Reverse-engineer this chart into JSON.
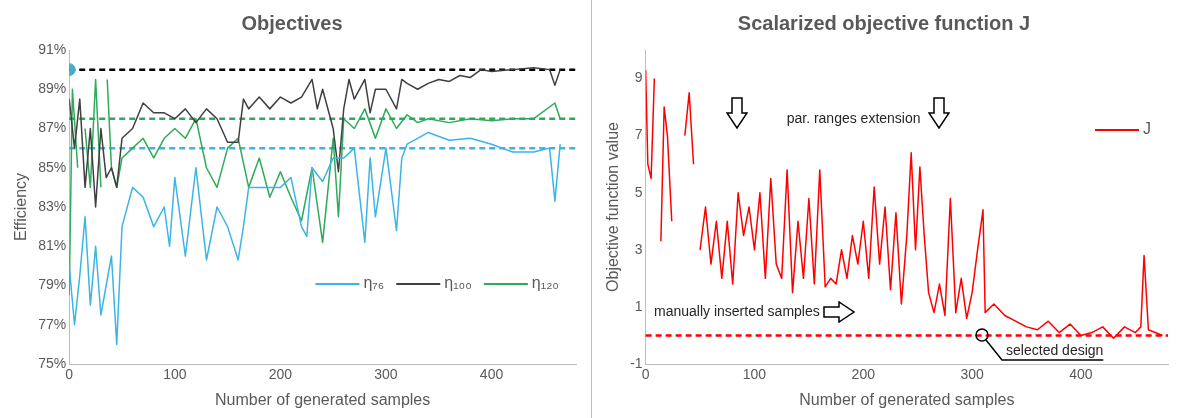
{
  "chart_data": [
    {
      "type": "line",
      "title": "Objectives",
      "xlabel": "Number of generated samples",
      "ylabel": "Efficiency",
      "xlim": [
        0,
        480
      ],
      "xticks": [
        0,
        100,
        200,
        300,
        400
      ],
      "ylim": [
        75,
        91
      ],
      "yticks": [
        {
          "value": 75,
          "label": "75%"
        },
        {
          "value": 77,
          "label": "77%"
        },
        {
          "value": 79,
          "label": "79%"
        },
        {
          "value": 81,
          "label": "81%"
        },
        {
          "value": 83,
          "label": "83%"
        },
        {
          "value": 85,
          "label": "85%"
        },
        {
          "value": 87,
          "label": "87%"
        },
        {
          "value": 89,
          "label": "89%"
        },
        {
          "value": 91,
          "label": "91%"
        }
      ],
      "grid": false,
      "legend": "bottom right",
      "marker": "none",
      "line_style": "solid",
      "series": [
        {
          "name": "η₇₆",
          "color": "#3cb4e5",
          "x": [
            0,
            5,
            10,
            15,
            20,
            25,
            30,
            35,
            40,
            45,
            50,
            60,
            70,
            80,
            90,
            95,
            100,
            110,
            120,
            130,
            140,
            150,
            160,
            165,
            170,
            180,
            190,
            200,
            210,
            220,
            225,
            230,
            240,
            250,
            260,
            270,
            280,
            285,
            290,
            300,
            310,
            315,
            320,
            330,
            340,
            360,
            380,
            400,
            420,
            440,
            455,
            460,
            465
          ],
          "values": [
            80,
            77,
            79.5,
            82.5,
            78,
            81,
            77.5,
            79,
            80.5,
            76,
            82,
            84,
            83.5,
            82,
            83,
            81,
            84.5,
            80.5,
            85,
            80.3,
            83,
            82,
            80.3,
            82,
            84,
            84,
            84,
            84,
            84.5,
            82,
            81.5,
            85,
            84.3,
            85.5,
            85.5,
            86,
            81.2,
            85.5,
            82.5,
            86,
            81.8,
            85.5,
            86.2,
            86.5,
            86.8,
            86.4,
            86.5,
            86.2,
            85.8,
            85.8,
            86,
            83.3,
            86.2
          ]
        },
        {
          "name": "η₁₀₀",
          "color": "#404040",
          "x": [
            0,
            5,
            10,
            15,
            20,
            25,
            30,
            35,
            40,
            45,
            50,
            60,
            70,
            80,
            90,
            100,
            110,
            120,
            130,
            140,
            150,
            160,
            165,
            170,
            180,
            190,
            200,
            210,
            220,
            230,
            235,
            240,
            250,
            255,
            260,
            265,
            270,
            280,
            285,
            290,
            300,
            310,
            315,
            320,
            330,
            340,
            350,
            360,
            370,
            380,
            390,
            400,
            420,
            440,
            455,
            460,
            465
          ],
          "values": [
            88.5,
            86,
            88.5,
            84,
            87,
            83,
            87,
            84.5,
            85,
            84,
            86.5,
            87,
            88.3,
            87.8,
            87.8,
            87.5,
            88,
            87.3,
            88,
            87.5,
            86.3,
            86.3,
            88.5,
            88,
            88.6,
            88,
            88.6,
            88.3,
            88.6,
            89.5,
            88,
            89,
            87,
            84.8,
            88,
            89.5,
            88.5,
            89.5,
            87.8,
            89,
            89,
            88,
            89.5,
            89.3,
            89,
            89.3,
            89.5,
            89.4,
            89.7,
            89.6,
            90,
            89.9,
            90,
            90.1,
            90,
            89.2,
            90
          ]
        },
        {
          "name": "η₁₂₀",
          "color": "#2daa5a",
          "x": [
            0,
            3,
            8,
            10,
            15,
            20,
            25,
            30,
            33,
            36,
            40,
            45,
            50,
            60,
            70,
            80,
            90,
            100,
            110,
            120,
            130,
            140,
            150,
            160,
            170,
            180,
            190,
            200,
            210,
            220,
            230,
            240,
            250,
            255,
            260,
            270,
            280,
            290,
            300,
            310,
            320,
            330,
            340,
            360,
            380,
            400,
            420,
            440,
            460,
            465
          ],
          "values": [
            78.5,
            89,
            85,
            null,
            87,
            84,
            89.5,
            84,
            null,
            89.5,
            85,
            84,
            85.5,
            86,
            86.5,
            85.5,
            86.5,
            87,
            86.5,
            87.5,
            85,
            84,
            86,
            86.5,
            84,
            85.5,
            83.5,
            84.8,
            83.5,
            82.3,
            85,
            81.2,
            86.5,
            82.5,
            87.5,
            87,
            88,
            86.5,
            88,
            87,
            87.7,
            87.3,
            87.5,
            87.3,
            87.5,
            87.4,
            87.5,
            87.5,
            88.3,
            87.5
          ]
        },
        {
          "type": "scatter",
          "color": "#4bacc6",
          "marker": "circle",
          "x": [
            0
          ],
          "values": [
            90
          ]
        }
      ],
      "ref_lines": [
        {
          "axis": "y",
          "value": 90,
          "color": "#000000",
          "line_style": "dashed"
        },
        {
          "axis": "y",
          "value": 87.5,
          "color": "#2daa5a",
          "line_style": "dashed"
        },
        {
          "axis": "y",
          "value": 86,
          "color": "#3cb4e5",
          "line_style": "dashed"
        }
      ]
    },
    {
      "type": "line",
      "title": "Scalarized objective function J",
      "xlabel": "Number of generated samples",
      "ylabel": "Objective function value",
      "xlim": [
        0,
        480
      ],
      "xticks": [
        0,
        100,
        200,
        300,
        400
      ],
      "ylim": [
        -1,
        10
      ],
      "yticks": [
        -1,
        1,
        3,
        5,
        7,
        9
      ],
      "grid": false,
      "legend": "top right",
      "marker": "none",
      "line_style": "solid",
      "series": [
        {
          "name": "J",
          "color": "#ff0000",
          "x": [
            0,
            2,
            5,
            8,
            11,
            14,
            17,
            20,
            24,
            28,
            32,
            36,
            40,
            44,
            47,
            50,
            55,
            60,
            65,
            70,
            75,
            80,
            85,
            90,
            95,
            100,
            105,
            110,
            115,
            120,
            125,
            130,
            135,
            140,
            145,
            150,
            155,
            160,
            165,
            170,
            175,
            180,
            185,
            190,
            195,
            200,
            205,
            210,
            215,
            220,
            225,
            230,
            235,
            240,
            244,
            248,
            252,
            256,
            260,
            265,
            270,
            275,
            280,
            285,
            290,
            295,
            300,
            305,
            310,
            312,
            320,
            330,
            340,
            350,
            360,
            370,
            380,
            390,
            400,
            410,
            420,
            430,
            440,
            450,
            455,
            458,
            462,
            475
          ],
          "values": [
            9.3,
            6,
            5.5,
            9,
            null,
            3.3,
            8,
            7,
            4,
            null,
            null,
            7,
            8.5,
            6,
            null,
            3,
            4.5,
            2.5,
            4,
            2,
            4,
            1.8,
            5,
            3.5,
            4.5,
            3,
            5,
            2,
            5.5,
            2.5,
            2,
            5.8,
            1.5,
            4,
            2,
            4.8,
            1.8,
            5.8,
            1.7,
            2,
            1.8,
            3,
            2,
            3.5,
            2.5,
            4,
            2,
            5.2,
            2.5,
            4.5,
            1.6,
            4.3,
            1.1,
            3.5,
            6.4,
            3,
            5.9,
            3.5,
            1.5,
            0.8,
            1.8,
            0.7,
            4.8,
            0.8,
            2,
            0.6,
            1.5,
            3,
            4.4,
            0.8,
            1.1,
            0.7,
            0.5,
            0.3,
            0.2,
            0.5,
            0.1,
            0.4,
            0,
            0.1,
            0.3,
            -0.1,
            0.3,
            0.1,
            0.3,
            2.8,
            0.2,
            0
          ]
        }
      ],
      "ref_lines": [
        {
          "axis": "y",
          "value": 0,
          "color": "#ff0000",
          "line_style": "dashed"
        }
      ],
      "annotations": [
        "par. ranges extension",
        "manually inserted samples",
        "selected design"
      ]
    }
  ]
}
